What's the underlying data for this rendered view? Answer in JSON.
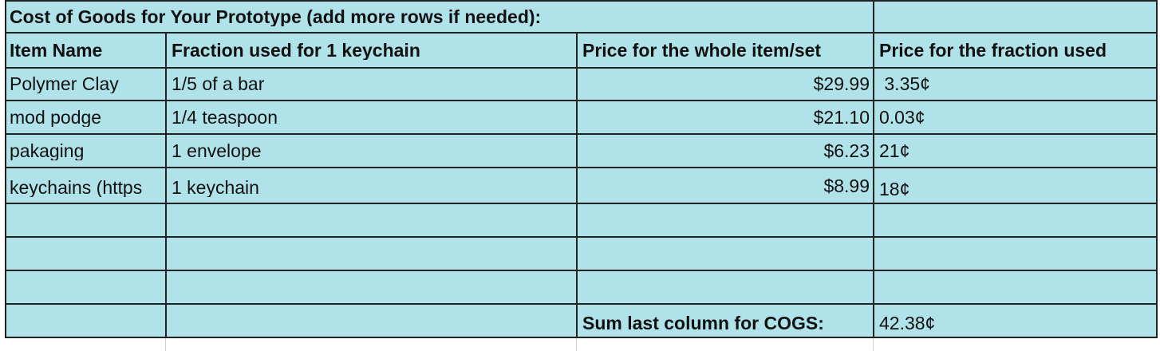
{
  "sheet": {
    "title": "Cost of Goods for Your Prototype (add more rows if needed):",
    "headers": [
      "Item Name",
      "Fraction used for 1 keychain",
      "Price for the whole item/set",
      "Price for the fraction used"
    ],
    "rows": [
      {
        "item": "Polymer Clay",
        "fraction": "1/5 of a bar",
        "price": "$29.99",
        "fraction_price": " 3.35¢"
      },
      {
        "item": "mod podge",
        "fraction": "1/4 teaspoon",
        "price": "$21.10",
        "fraction_price": "0.03¢"
      },
      {
        "item": "pakaging",
        "fraction": "1 envelope",
        "price": "$6.23",
        "fraction_price": "21¢"
      },
      {
        "item": "keychains (https",
        "fraction": "1 keychain",
        "price": "$8.99",
        "fraction_price": "18¢"
      }
    ],
    "sum_label": "Sum last column for COGS:",
    "sum_value": "42.38¢",
    "fill_color": "#b0e2ea"
  }
}
